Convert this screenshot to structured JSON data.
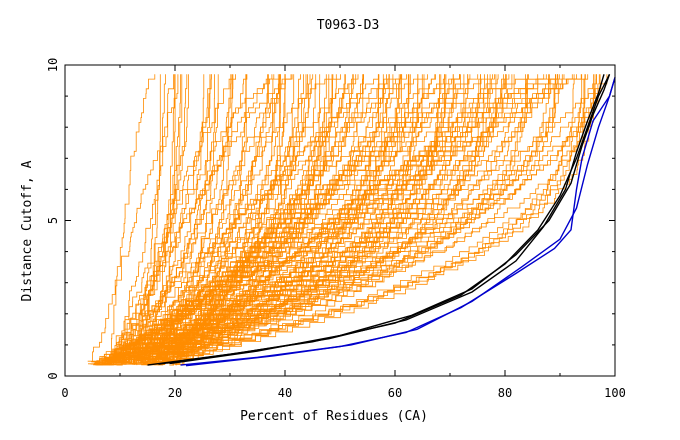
{
  "chart_data": {
    "type": "line",
    "title": "T0963-D3",
    "xlabel": "Percent of Residues (CA)",
    "ylabel": "Distance Cutoff, A",
    "xlim": [
      0,
      100
    ],
    "ylim": [
      0,
      10
    ],
    "xticks": [
      "0",
      "20",
      "40",
      "60",
      "80",
      "100"
    ],
    "yticks": [
      "0",
      "5",
      "10"
    ],
    "grid": false,
    "colors": {
      "background_models": "#ff8c00",
      "highlight_black": "#000000",
      "highlight_blue": "#0000cc"
    },
    "background_model_count": 150,
    "series": [
      {
        "color": "#000000",
        "points": [
          [
            15,
            0.35
          ],
          [
            30,
            0.7
          ],
          [
            45,
            1.1
          ],
          [
            60,
            1.7
          ],
          [
            72,
            2.6
          ],
          [
            80,
            3.6
          ],
          [
            86,
            4.7
          ],
          [
            90,
            5.8
          ],
          [
            93,
            7.0
          ],
          [
            95,
            8.0
          ],
          [
            97,
            9.0
          ],
          [
            99,
            9.7
          ]
        ]
      },
      {
        "color": "#000000",
        "points": [
          [
            17,
            0.38
          ],
          [
            32,
            0.75
          ],
          [
            48,
            1.2
          ],
          [
            62,
            1.8
          ],
          [
            74,
            2.7
          ],
          [
            82,
            3.7
          ],
          [
            87,
            4.8
          ],
          [
            91,
            6.0
          ],
          [
            93,
            7.2
          ],
          [
            95,
            8.2
          ],
          [
            97,
            9.1
          ],
          [
            98,
            9.7
          ]
        ]
      },
      {
        "color": "#000000",
        "points": [
          [
            19,
            0.4
          ],
          [
            35,
            0.8
          ],
          [
            50,
            1.3
          ],
          [
            63,
            1.95
          ],
          [
            74,
            2.8
          ],
          [
            82,
            3.9
          ],
          [
            88,
            5.0
          ],
          [
            92,
            6.2
          ],
          [
            94,
            7.4
          ],
          [
            96,
            8.4
          ],
          [
            98,
            9.2
          ],
          [
            99,
            9.7
          ]
        ]
      },
      {
        "color": "#0000cc",
        "points": [
          [
            21,
            0.35
          ],
          [
            35,
            0.6
          ],
          [
            50,
            0.95
          ],
          [
            62,
            1.4
          ],
          [
            72,
            2.2
          ],
          [
            82,
            3.3
          ],
          [
            89,
            4.1
          ],
          [
            92,
            4.7
          ],
          [
            93,
            6.0
          ],
          [
            94,
            7.0
          ],
          [
            96,
            8.2
          ],
          [
            99,
            9.0
          ],
          [
            100,
            9.6
          ]
        ]
      },
      {
        "color": "#0000cc",
        "points": [
          [
            22,
            0.33
          ],
          [
            38,
            0.65
          ],
          [
            52,
            1.0
          ],
          [
            64,
            1.5
          ],
          [
            74,
            2.4
          ],
          [
            83,
            3.5
          ],
          [
            90,
            4.4
          ],
          [
            93,
            5.4
          ],
          [
            95,
            6.8
          ],
          [
            97,
            8.0
          ],
          [
            99,
            9.0
          ],
          [
            100,
            9.6
          ]
        ]
      }
    ]
  }
}
